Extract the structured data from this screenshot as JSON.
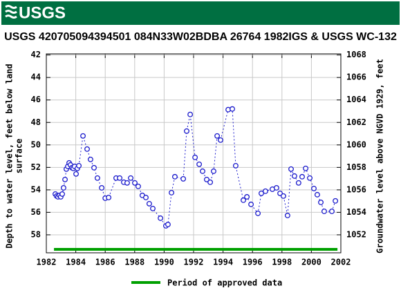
{
  "chart_data": {
    "type": "scatter",
    "logo": "USGS",
    "title": "USGS 420705094394501 084N33W02BDBA 26764 1982IGS & USGS WC-132",
    "ylabel": [
      "Depth to water level, feet below land",
      "surface"
    ],
    "y2label": "Groundwater level above NGVD 1929, feet",
    "xlim": [
      1982,
      2002
    ],
    "xticks": [
      1982,
      1984,
      1986,
      1988,
      1990,
      1992,
      1994,
      1996,
      1998,
      2000,
      2002
    ],
    "ylim": [
      59.6,
      41.9
    ],
    "yticks": [
      42,
      44,
      46,
      48,
      50,
      52,
      54,
      56,
      58
    ],
    "y2lim": [
      1050.4,
      1068.1
    ],
    "y2ticks": [
      1052,
      1054,
      1056,
      1058,
      1060,
      1062,
      1064,
      1066,
      1068
    ],
    "grid": true,
    "series": [
      {
        "color": "#1a1acc",
        "x": [
          1982.61,
          1982.7,
          1982.79,
          1982.89,
          1982.98,
          1983.08,
          1983.17,
          1983.27,
          1983.36,
          1983.46,
          1983.55,
          1983.64,
          1983.74,
          1983.83,
          1983.92,
          1984.02,
          1984.11,
          1984.21,
          1984.49,
          1984.77,
          1985.0,
          1985.24,
          1985.47,
          1985.76,
          1986.0,
          1986.23,
          1986.74,
          1986.98,
          1987.26,
          1987.49,
          1987.73,
          1988.01,
          1988.24,
          1988.52,
          1988.76,
          1988.99,
          1989.23,
          1989.75,
          1990.12,
          1990.26,
          1990.5,
          1990.73,
          1991.3,
          1991.53,
          1991.77,
          1992.1,
          1992.38,
          1992.61,
          1992.89,
          1993.13,
          1993.36,
          1993.6,
          1993.83,
          1994.35,
          1994.63,
          1994.86,
          1995.38,
          1995.62,
          1995.9,
          1996.37,
          1996.6,
          1996.88,
          1997.35,
          1997.63,
          1997.87,
          1998.1,
          1998.38,
          1998.62,
          1998.85,
          1999.13,
          1999.37,
          1999.61,
          1999.89,
          2000.17,
          2000.4,
          2000.64,
          2000.87,
          2001.39,
          2001.63
        ],
        "values": [
          54.37,
          54.55,
          54.62,
          54.49,
          54.62,
          54.37,
          53.82,
          53.08,
          52.15,
          51.91,
          51.6,
          51.78,
          52.03,
          52.09,
          51.91,
          52.58,
          52.09,
          51.85,
          49.2,
          50.37,
          51.29,
          52.03,
          52.95,
          53.82,
          54.74,
          54.68,
          52.95,
          52.95,
          53.32,
          53.38,
          52.95,
          53.38,
          53.69,
          54.49,
          54.68,
          55.23,
          55.66,
          56.52,
          57.2,
          57.08,
          54.25,
          52.83,
          53.02,
          48.77,
          47.29,
          51.11,
          51.72,
          52.34,
          53.08,
          53.32,
          52.34,
          49.2,
          49.57,
          46.86,
          46.8,
          51.85,
          54.92,
          54.62,
          55.29,
          56.09,
          54.31,
          54.12,
          53.94,
          53.82,
          54.31,
          54.55,
          56.28,
          52.15,
          52.77,
          53.38,
          52.83,
          52.09,
          52.95,
          53.88,
          54.43,
          55.11,
          55.91,
          55.91,
          54.98
        ]
      }
    ],
    "approved_periods": [
      {
        "name": "Period of approved data",
        "color": "#00a000",
        "start": 1982.52,
        "end": 2001.77
      }
    ]
  }
}
